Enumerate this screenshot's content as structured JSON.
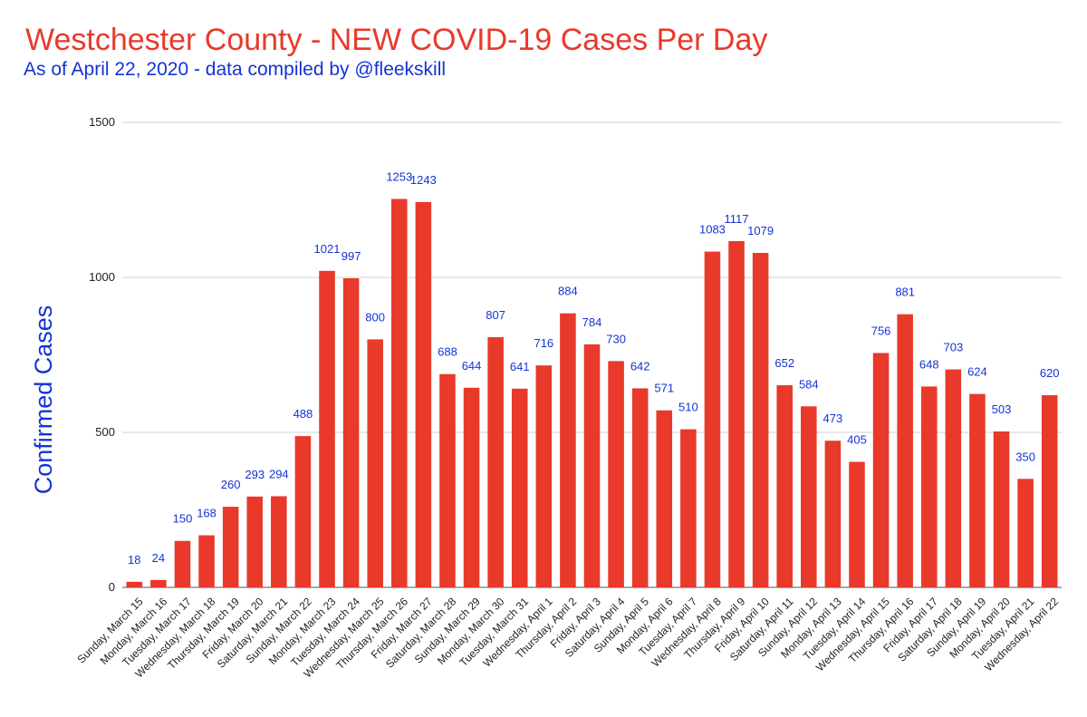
{
  "colors": {
    "title": "#e8392b",
    "subtitle": "#1433d6",
    "bar": "#e8392b",
    "data_label": "#1433d6",
    "ylabel": "#1433d6",
    "grid": "#d0d0d0",
    "tick": "#222222"
  },
  "chart_data": {
    "type": "bar",
    "title": "Westchester County - NEW COVID-19 Cases Per Day",
    "subtitle": "As of April 22, 2020 - data compiled by @fleekskill",
    "xlabel": "",
    "ylabel": "Confirmed Cases",
    "ylim": [
      0,
      1500
    ],
    "yticks": [
      0,
      500,
      1000,
      1500
    ],
    "grid": true,
    "legend": "none",
    "categories": [
      "Sunday, March 15",
      "Monday, March 16",
      "Tuesday, March 17",
      "Wednesday, March 18",
      "Thursday, March 19",
      "Friday, March 20",
      "Saturday, March 21",
      "Sunday, March 22",
      "Monday, March 23",
      "Tuesday, March 24",
      "Wednesday, March 25",
      "Thursday, March 26",
      "Friday, March 27",
      "Saturday, March 28",
      "Sunday, March 29",
      "Monday, March 30",
      "Tuesday, March 31",
      "Wednesday, April 1",
      "Thursday, April 2",
      "Friday, April 3",
      "Saturday, April 4",
      "Sunday, April 5",
      "Monday, April 6",
      "Tuesday, April 7",
      "Wednesday, April 8",
      "Thursday, April 9",
      "Friday, April 10",
      "Saturday, April 11",
      "Sunday, April 12",
      "Monday, April 13",
      "Tuesday, April 14",
      "Wednesday, April 15",
      "Thursday, April 16",
      "Friday, April 17",
      "Saturday, April 18",
      "Sunday, April 19",
      "Monday, April 20",
      "Tuesday, April 21",
      "Wednesday, April 22"
    ],
    "values": [
      18,
      24,
      150,
      168,
      260,
      293,
      294,
      488,
      1021,
      997,
      800,
      1253,
      1243,
      688,
      644,
      807,
      641,
      716,
      884,
      784,
      730,
      642,
      571,
      510,
      1083,
      1117,
      1079,
      652,
      584,
      473,
      405,
      756,
      881,
      648,
      703,
      624,
      503,
      350,
      620
    ]
  }
}
